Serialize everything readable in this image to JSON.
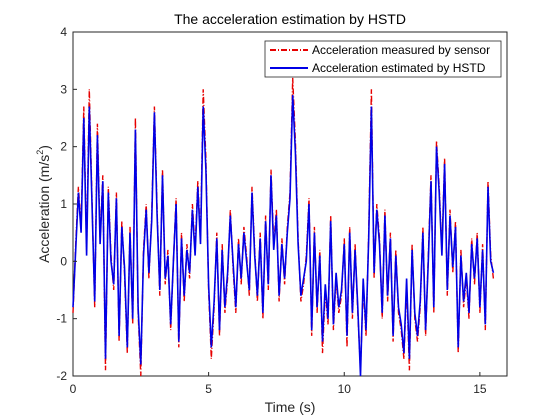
{
  "chart_data": {
    "type": "line",
    "title": "The acceleration estimation by HSTD",
    "xlabel": "Time (s)",
    "ylabel": "Acceleration (m/s",
    "ylabel_superscript": "2",
    "ylabel_suffix": ")",
    "xlim": [
      0,
      16
    ],
    "ylim": [
      -2,
      4
    ],
    "xticks": [
      0,
      5,
      10,
      15
    ],
    "yticks": [
      -2,
      -1,
      0,
      1,
      2,
      3,
      4
    ],
    "grid": false,
    "legend_position": "top-right",
    "series": [
      {
        "name": "Acceleration measured by sensor",
        "color": "#e60000",
        "style": "dash-dot",
        "x": [
          0,
          0.1,
          0.2,
          0.3,
          0.4,
          0.5,
          0.6,
          0.7,
          0.8,
          0.9,
          1.0,
          1.1,
          1.2,
          1.3,
          1.4,
          1.5,
          1.6,
          1.7,
          1.8,
          1.9,
          2.0,
          2.1,
          2.2,
          2.3,
          2.4,
          2.5,
          2.6,
          2.7,
          2.8,
          2.9,
          3.0,
          3.1,
          3.2,
          3.3,
          3.4,
          3.5,
          3.6,
          3.7,
          3.8,
          3.9,
          4.0,
          4.1,
          4.2,
          4.3,
          4.4,
          4.5,
          4.6,
          4.7,
          4.8,
          4.9,
          5.0,
          5.1,
          5.2,
          5.3,
          5.4,
          5.5,
          5.6,
          5.7,
          5.8,
          5.9,
          6.0,
          6.1,
          6.2,
          6.3,
          6.4,
          6.5,
          6.6,
          6.7,
          6.8,
          6.9,
          7.0,
          7.1,
          7.2,
          7.3,
          7.4,
          7.5,
          7.6,
          7.7,
          7.8,
          7.9,
          8.0,
          8.1,
          8.2,
          8.3,
          8.4,
          8.5,
          8.6,
          8.7,
          8.8,
          8.9,
          9.0,
          9.1,
          9.2,
          9.3,
          9.4,
          9.5,
          9.6,
          9.7,
          9.8,
          9.9,
          10.0,
          10.1,
          10.2,
          10.3,
          10.4,
          10.5,
          10.6,
          10.7,
          10.8,
          10.9,
          11.0,
          11.1,
          11.2,
          11.3,
          11.4,
          11.5,
          11.6,
          11.7,
          11.8,
          11.9,
          12.0,
          12.1,
          12.2,
          12.3,
          12.4,
          12.5,
          12.6,
          12.7,
          12.8,
          12.9,
          13.0,
          13.1,
          13.2,
          13.3,
          13.4,
          13.5,
          13.6,
          13.7,
          13.8,
          13.9,
          14.0,
          14.1,
          14.2,
          14.3,
          14.4,
          14.5,
          14.6,
          14.7,
          14.8,
          14.9,
          15.0,
          15.1,
          15.2,
          15.3,
          15.4,
          15.5
        ],
        "y": [
          -0.9,
          0.3,
          1.3,
          0.6,
          2.7,
          0.2,
          3.0,
          1.1,
          -0.8,
          2.4,
          0.4,
          1.5,
          -1.9,
          1.3,
          0.1,
          -0.5,
          1.2,
          -1.4,
          0.7,
          -0.2,
          -1.6,
          0.6,
          -1.1,
          2.5,
          -0.9,
          -2.0,
          0.2,
          1.0,
          -0.3,
          0.8,
          2.7,
          0.9,
          -0.6,
          1.6,
          -0.4,
          0.2,
          -1.2,
          0.0,
          1.1,
          -1.5,
          0.5,
          -0.7,
          0.3,
          -0.3,
          1.0,
          0.2,
          1.4,
          0.4,
          3.0,
          1.8,
          -0.5,
          -1.7,
          -0.8,
          0.5,
          -1.3,
          0.3,
          -0.9,
          -0.3,
          0.9,
          -0.1,
          -0.9,
          0.4,
          -0.4,
          0.6,
          0.1,
          -0.6,
          1.3,
          0.2,
          -0.7,
          0.5,
          -1.0,
          0.8,
          -0.5,
          1.6,
          0.3,
          0.9,
          -0.7,
          0.4,
          -0.4,
          0.6,
          1.2,
          3.2,
          2.1,
          0.4,
          -0.7,
          -0.4,
          0.1,
          1.1,
          -1.3,
          0.6,
          -0.9,
          0.2,
          -1.6,
          -0.5,
          -1.1,
          0.8,
          -1.2,
          -0.3,
          -0.9,
          -0.6,
          0.4,
          -1.5,
          0.6,
          -1.0,
          0.3,
          -0.9,
          -1.9,
          -0.4,
          -1.3,
          0.5,
          3.0,
          -0.3,
          1.0,
          0.4,
          -1.0,
          0.9,
          -0.7,
          0.5,
          -1.4,
          0.2,
          -0.9,
          -1.2,
          -1.7,
          -0.4,
          -1.9,
          0.3,
          -1.0,
          -1.4,
          -0.8,
          0.6,
          -1.3,
          0.1,
          1.5,
          -0.9,
          2.1,
          1.3,
          0.2,
          1.8,
          -0.6,
          0.9,
          -0.2,
          0.7,
          -1.6,
          0.2,
          -0.8,
          -0.3,
          -1.0,
          0.4,
          -0.4,
          0.5,
          -0.9,
          0.3,
          -1.2,
          1.4,
          0.1,
          -0.3
        ]
      },
      {
        "name": "Acceleration estimated by HSTD",
        "color": "#0000e6",
        "style": "solid",
        "x": [
          0,
          0.1,
          0.2,
          0.3,
          0.4,
          0.5,
          0.6,
          0.7,
          0.8,
          0.9,
          1.0,
          1.1,
          1.2,
          1.3,
          1.4,
          1.5,
          1.6,
          1.7,
          1.8,
          1.9,
          2.0,
          2.1,
          2.2,
          2.3,
          2.4,
          2.5,
          2.6,
          2.7,
          2.8,
          2.9,
          3.0,
          3.1,
          3.2,
          3.3,
          3.4,
          3.5,
          3.6,
          3.7,
          3.8,
          3.9,
          4.0,
          4.1,
          4.2,
          4.3,
          4.4,
          4.5,
          4.6,
          4.7,
          4.8,
          4.9,
          5.0,
          5.1,
          5.2,
          5.3,
          5.4,
          5.5,
          5.6,
          5.7,
          5.8,
          5.9,
          6.0,
          6.1,
          6.2,
          6.3,
          6.4,
          6.5,
          6.6,
          6.7,
          6.8,
          6.9,
          7.0,
          7.1,
          7.2,
          7.3,
          7.4,
          7.5,
          7.6,
          7.7,
          7.8,
          7.9,
          8.0,
          8.1,
          8.2,
          8.3,
          8.4,
          8.5,
          8.6,
          8.7,
          8.8,
          8.9,
          9.0,
          9.1,
          9.2,
          9.3,
          9.4,
          9.5,
          9.6,
          9.7,
          9.8,
          9.9,
          10.0,
          10.1,
          10.2,
          10.3,
          10.4,
          10.5,
          10.6,
          10.7,
          10.8,
          10.9,
          11.0,
          11.1,
          11.2,
          11.3,
          11.4,
          11.5,
          11.6,
          11.7,
          11.8,
          11.9,
          12.0,
          12.1,
          12.2,
          12.3,
          12.4,
          12.5,
          12.6,
          12.7,
          12.8,
          12.9,
          13.0,
          13.1,
          13.2,
          13.3,
          13.4,
          13.5,
          13.6,
          13.7,
          13.8,
          13.9,
          14.0,
          14.1,
          14.2,
          14.3,
          14.4,
          14.5,
          14.6,
          14.7,
          14.8,
          14.9,
          15.0,
          15.1,
          15.2,
          15.3,
          15.4,
          15.5
        ],
        "y": [
          -0.8,
          0.2,
          1.2,
          0.5,
          2.5,
          0.1,
          2.7,
          1.0,
          -0.7,
          2.2,
          0.3,
          1.4,
          -1.7,
          1.2,
          0.0,
          -0.4,
          1.1,
          -1.3,
          0.6,
          -0.1,
          -1.5,
          0.5,
          -1.0,
          2.3,
          -0.8,
          -1.8,
          0.1,
          0.9,
          -0.2,
          0.7,
          2.6,
          0.8,
          -0.5,
          1.5,
          -0.3,
          0.1,
          -1.1,
          0.0,
          1.0,
          -1.4,
          0.4,
          -0.6,
          0.2,
          -0.2,
          0.9,
          0.1,
          1.3,
          0.3,
          2.7,
          1.6,
          -0.4,
          -1.5,
          -0.7,
          0.4,
          -1.2,
          0.2,
          -0.8,
          -0.2,
          0.8,
          0.0,
          -0.8,
          0.3,
          -0.3,
          0.5,
          0.0,
          -0.5,
          1.2,
          0.1,
          -0.6,
          0.4,
          -0.9,
          0.7,
          -0.4,
          1.5,
          0.2,
          0.8,
          -0.6,
          0.3,
          -0.3,
          0.5,
          1.1,
          2.9,
          1.9,
          0.3,
          -0.6,
          -0.3,
          0.0,
          1.0,
          -1.2,
          0.5,
          -0.8,
          0.1,
          -1.4,
          -0.4,
          -1.0,
          0.7,
          -1.1,
          -0.2,
          -0.8,
          -0.5,
          0.3,
          -1.3,
          0.5,
          -0.9,
          0.2,
          -0.8,
          -2.0,
          -0.3,
          -1.2,
          0.4,
          2.7,
          -0.2,
          0.9,
          0.3,
          -0.9,
          0.8,
          -0.6,
          0.4,
          -1.3,
          0.1,
          -0.8,
          -1.1,
          -1.6,
          -0.3,
          -1.7,
          0.2,
          -0.9,
          -1.3,
          -0.7,
          0.5,
          -1.2,
          0.0,
          1.4,
          -0.8,
          2.0,
          1.2,
          0.1,
          1.7,
          -0.5,
          0.8,
          -0.1,
          0.6,
          -1.5,
          0.1,
          -0.7,
          -0.2,
          -0.9,
          0.3,
          -0.3,
          0.4,
          -0.8,
          0.2,
          -1.1,
          1.3,
          0.0,
          -0.2
        ]
      }
    ]
  }
}
